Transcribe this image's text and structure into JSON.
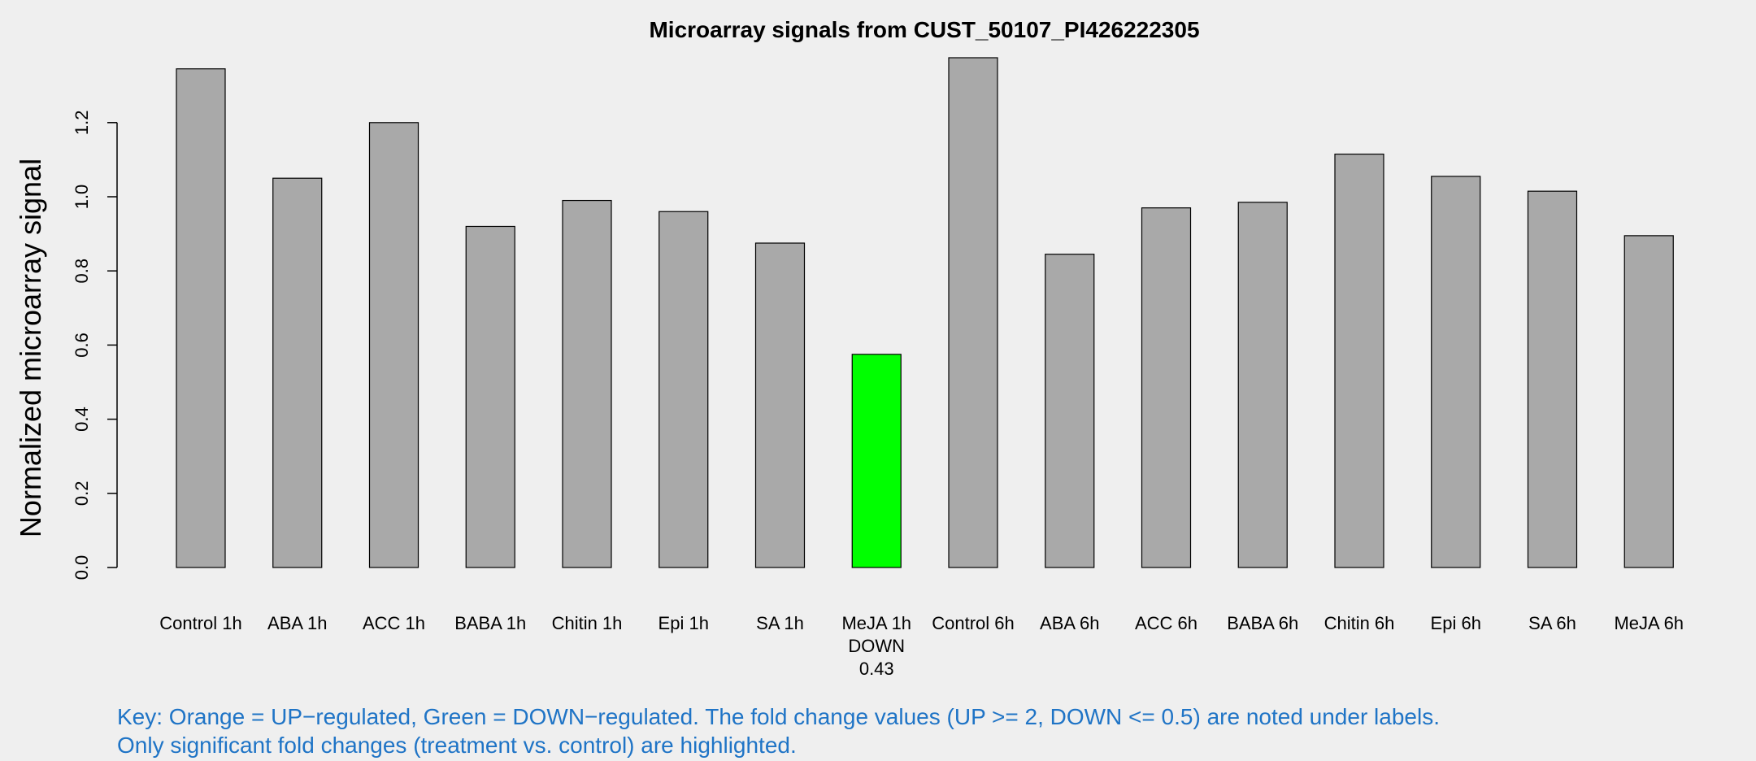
{
  "chart_data": {
    "type": "bar",
    "title": "Microarray signals from CUST_50107_PI426222305",
    "xlabel": "",
    "ylabel": "Normalized microarray signal",
    "ylim": [
      0,
      1.4
    ],
    "yticks": [
      "0.0",
      "0.2",
      "0.4",
      "0.6",
      "0.8",
      "1.0",
      "1.2"
    ],
    "categories": [
      "Control 1h",
      "ABA 1h",
      "ACC 1h",
      "BABA 1h",
      "Chitin 1h",
      "Epi 1h",
      "SA 1h",
      "MeJA 1h",
      "Control 6h",
      "ABA 6h",
      "ACC 6h",
      "BABA 6h",
      "Chitin 6h",
      "Epi 6h",
      "SA 6h",
      "MeJA 6h"
    ],
    "values": [
      1.345,
      1.05,
      1.2,
      0.92,
      0.99,
      0.96,
      0.875,
      0.575,
      1.375,
      0.845,
      0.97,
      0.985,
      1.115,
      1.055,
      1.015,
      0.895
    ],
    "annotations": [
      {
        "category": "MeJA 1h",
        "lines": [
          "DOWN",
          "0.43"
        ]
      }
    ],
    "colors": {
      "default": "#a9a9a9",
      "down": "#00ff00",
      "up": "#ffa500",
      "background": "#efefef"
    },
    "highlight": {
      "MeJA 1h": "down"
    },
    "grid": false,
    "legend": "none"
  },
  "key": {
    "line1": "Key: Orange = UP−regulated, Green = DOWN−regulated. The fold change values (UP >= 2, DOWN <= 0.5) are noted under labels.",
    "line2": "Only significant fold changes (treatment vs. control) are highlighted."
  }
}
